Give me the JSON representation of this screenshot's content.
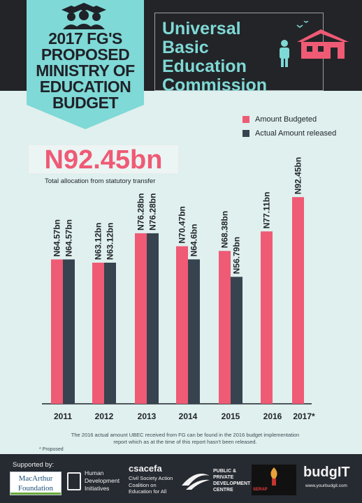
{
  "header": {
    "title_lines": [
      "2017 FG'S",
      "PROPOSED",
      "MINISTRY OF",
      "EDUCATION",
      "BUDGET"
    ],
    "subject_lines": [
      "Universal",
      "Basic",
      "Education",
      "Commission"
    ]
  },
  "highlight": {
    "amount": "N92.45bn",
    "caption": "Total allocation from statutory transfer"
  },
  "colors": {
    "budgeted": "#ef5a75",
    "released": "#37434f",
    "teal": "#7fd9d6",
    "badge": "#7fd9d6"
  },
  "chart_data": {
    "type": "bar",
    "categories": [
      "2011",
      "2012",
      "2013",
      "2014",
      "2015",
      "2016",
      "2017*"
    ],
    "series": [
      {
        "name": "Amount Budgeted",
        "values": [
          64.57,
          63.12,
          76.28,
          70.47,
          68.38,
          77.11,
          92.45
        ],
        "labels": [
          "N64.57bn",
          "N63.12bn",
          "N76.28bn",
          "N70.47bn",
          "N68.38bn",
          "N77.11bn",
          "N92.45bn"
        ]
      },
      {
        "name": "Actual Amount released",
        "values": [
          64.57,
          63.12,
          76.28,
          64.6,
          56.79,
          null,
          null
        ],
        "labels": [
          "N64.57bn",
          "N63.12bn",
          "N76.28bn",
          "N64.6bn",
          "N56.79bn",
          null,
          null
        ]
      }
    ],
    "legend": [
      "Amount Budgeted",
      "Actual Amount released"
    ],
    "legend_position": "top-right",
    "ylim": [
      0,
      100
    ],
    "grid": false
  },
  "footnote": "The 2016 actual amount UBEC received from FG can be found in the 2016 budget implementation report which as at the time of this report hasn't been released.",
  "proposed_note": "* Proposed",
  "footer": {
    "supported_by": "Supported by:",
    "macarthur": [
      "MacArthur",
      "Foundation"
    ],
    "hdi": [
      "Human",
      "Development",
      "Initiatives"
    ],
    "csacefa_title": "csacefa",
    "csacefa_sub": [
      "Civil Society Action",
      "Coalition on",
      "Education for All"
    ],
    "ppdc": [
      "PUBLIC &",
      "PRIVATE",
      "DEVELOPMENT",
      "CENTRE"
    ],
    "serap": "SERAP",
    "budgit": "budgIT",
    "budgit_url": "www.yourbudgit.com"
  }
}
